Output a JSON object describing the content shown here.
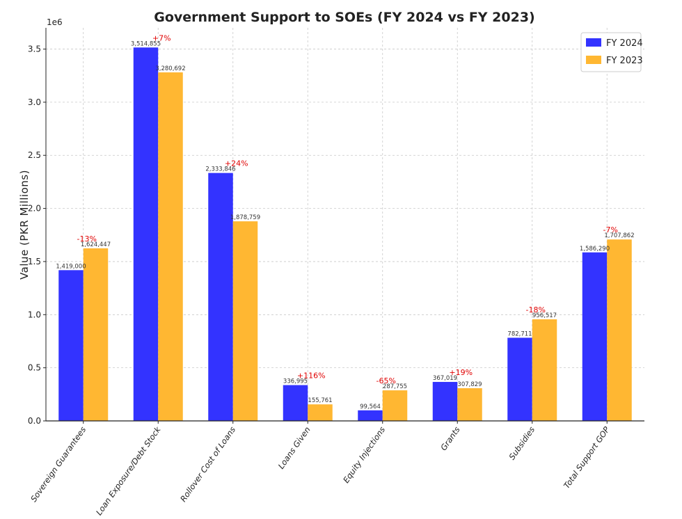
{
  "chart_data": {
    "type": "bar",
    "title": "Government Support to SOEs (FY 2024 vs FY 2023)",
    "ylabel": "Value (PKR Millions)",
    "xlabel": "",
    "y_scale_label": "1e6",
    "ylim": [
      0,
      3700000
    ],
    "yticks": [
      0,
      500000,
      1000000,
      1500000,
      2000000,
      2500000,
      3000000,
      3500000
    ],
    "ytick_labels": [
      "0.0",
      "0.5",
      "1.0",
      "1.5",
      "2.0",
      "2.5",
      "3.0",
      "3.5"
    ],
    "grid": true,
    "legend_position": "top-right",
    "categories": [
      "Sovereign Guarantees",
      "Loan Exposure/Debt Stock",
      "Rollover Cost of Loans",
      "Loans Given",
      "Equity Injections",
      "Grants",
      "Subsidies",
      "Total Support GOP"
    ],
    "series": [
      {
        "name": "FY 2024",
        "color": "#3333ff",
        "values": [
          1419000,
          3514855,
          2333846,
          336995,
          99564,
          367019,
          782711,
          1586290
        ],
        "labels": [
          "1,419,000",
          "3,514,855",
          "2,333,846",
          "336,995",
          "99,564",
          "367,019",
          "782,711",
          "1,586,290"
        ]
      },
      {
        "name": "FY 2023",
        "color": "#ffb732",
        "values": [
          1624447,
          3280692,
          1878759,
          155761,
          287755,
          307829,
          956517,
          1707862
        ],
        "labels": [
          "1,624,447",
          "3,280,692",
          "1,878,759",
          "155,761",
          "287,755",
          "307,829",
          "956,517",
          "1,707,862"
        ]
      }
    ],
    "pct_changes": [
      "-13%",
      "+7%",
      "+24%",
      "+116%",
      "-65%",
      "+19%",
      "-18%",
      "-7%"
    ],
    "pct_color": "#e00000"
  }
}
